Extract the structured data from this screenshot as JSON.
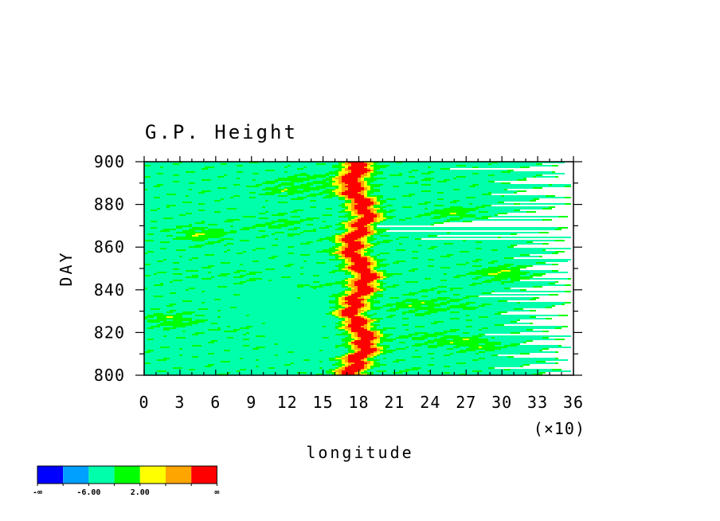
{
  "chart_data": {
    "type": "heatmap",
    "title": "G.P. Height",
    "xlabel": "longitude",
    "ylabel": "DAY",
    "x_scale_note": "(×10)",
    "xlim": [
      0,
      36
    ],
    "ylim": [
      800,
      900
    ],
    "x_ticks": [
      0,
      3,
      6,
      9,
      12,
      15,
      18,
      21,
      24,
      27,
      30,
      33,
      36
    ],
    "y_ticks": [
      800,
      820,
      840,
      860,
      880,
      900
    ],
    "colorbar": {
      "colors": [
        "#0000ff",
        "#00a0ff",
        "#00ffaa",
        "#00ff00",
        "#ffff00",
        "#ffa500",
        "#ff0000"
      ],
      "labels": [
        "-∞",
        "-6.00",
        "2.00",
        "∞"
      ]
    },
    "features": [
      {
        "level": 6,
        "x": 18.0,
        "y_range": [
          800,
          900
        ]
      }
    ]
  }
}
